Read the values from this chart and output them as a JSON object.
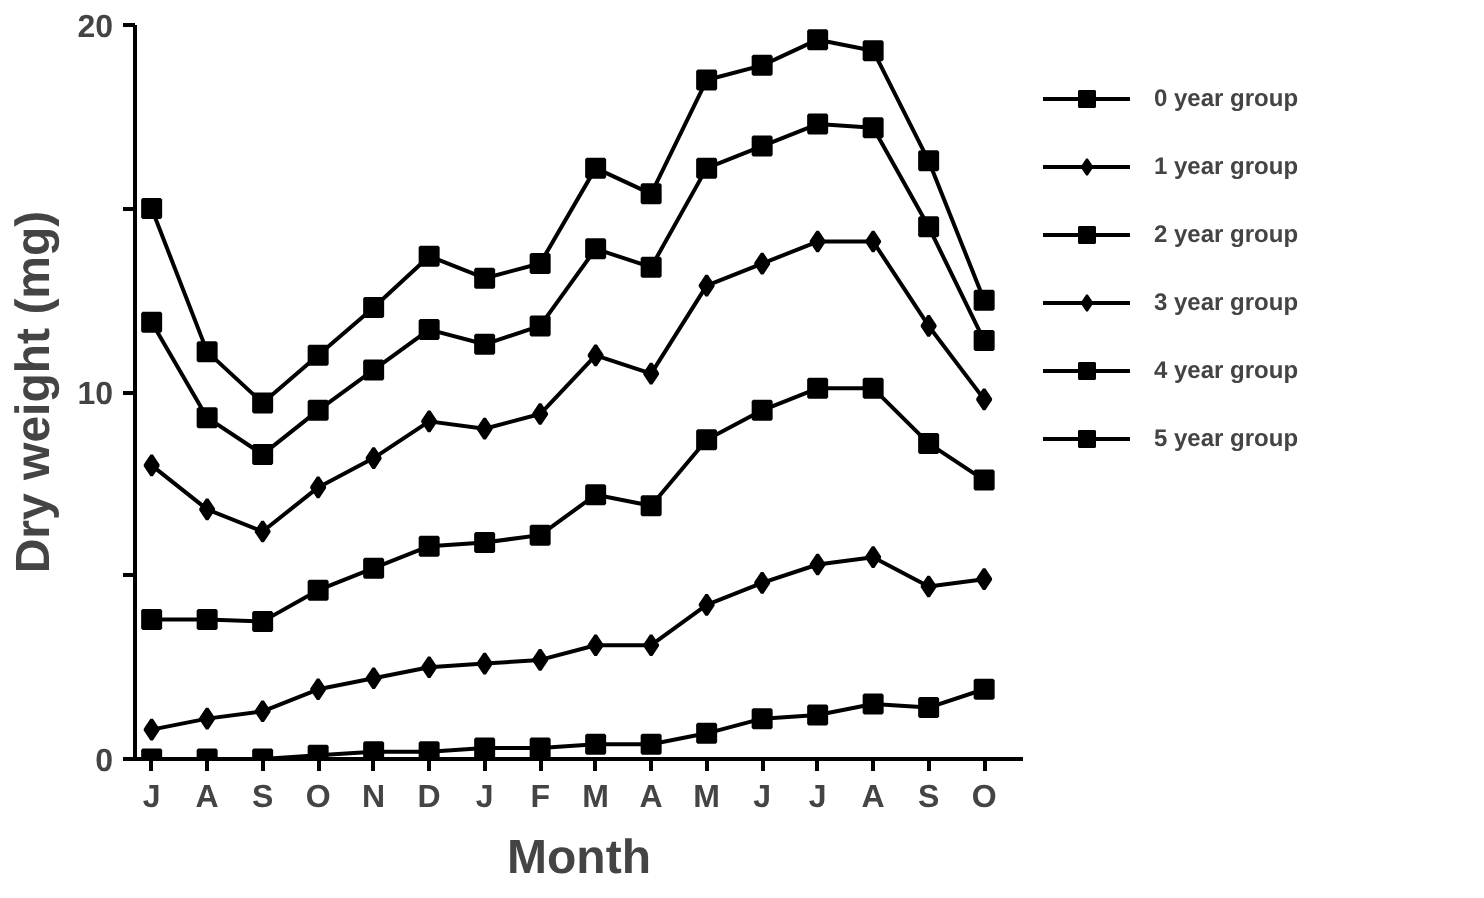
{
  "chart_data": {
    "type": "line",
    "xlabel": "Month",
    "ylabel": "Dry weight (mg)",
    "categories": [
      "J",
      "A",
      "S",
      "O",
      "N",
      "D",
      "J",
      "F",
      "M",
      "A",
      "M",
      "J",
      "J",
      "A",
      "S",
      "O"
    ],
    "ylim": [
      0,
      20
    ],
    "yticks": [
      0,
      {
        "value": 5,
        "label": null
      },
      10,
      {
        "value": 15,
        "label": null
      },
      20
    ],
    "grid": false,
    "legend": "right",
    "line_style": "solid",
    "series": [
      {
        "name": "0 year group",
        "color": "#000000",
        "marker": "square",
        "values": [
          0,
          0,
          0,
          0.1,
          0.2,
          0.2,
          0.3,
          0.3,
          0.4,
          0.4,
          0.7,
          1.1,
          1.2,
          1.5,
          1.4,
          1.9
        ]
      },
      {
        "name": "1 year group",
        "color": "#000000",
        "marker": "diamond",
        "values": [
          0.8,
          1.1,
          1.3,
          1.9,
          2.2,
          2.5,
          2.6,
          2.7,
          3.1,
          3.1,
          4.2,
          4.8,
          5.3,
          5.5,
          4.7,
          4.9
        ]
      },
      {
        "name": "2 year group",
        "color": "#000000",
        "marker": "square",
        "values": [
          3.8,
          3.8,
          3.75,
          4.6,
          5.2,
          5.8,
          5.9,
          6.1,
          7.2,
          6.9,
          8.7,
          9.5,
          10.1,
          10.1,
          8.6,
          7.6
        ]
      },
      {
        "name": "3 year group",
        "color": "#000000",
        "marker": "diamond",
        "values": [
          8.0,
          6.8,
          6.2,
          7.4,
          8.2,
          9.2,
          9.0,
          9.4,
          11.0,
          10.5,
          12.9,
          13.5,
          14.1,
          14.1,
          11.8,
          9.8
        ]
      },
      {
        "name": "4 year group",
        "color": "#000000",
        "marker": "square",
        "values": [
          11.9,
          9.3,
          8.3,
          9.5,
          10.6,
          11.7,
          11.3,
          11.8,
          13.9,
          13.4,
          16.1,
          16.7,
          17.3,
          17.2,
          14.5,
          11.4
        ]
      },
      {
        "name": "5 year group",
        "color": "#000000",
        "marker": "square",
        "values": [
          15.0,
          11.1,
          9.7,
          11.0,
          12.3,
          13.7,
          13.1,
          13.5,
          16.1,
          15.4,
          18.5,
          18.9,
          19.6,
          19.3,
          16.3,
          12.5
        ]
      }
    ]
  }
}
